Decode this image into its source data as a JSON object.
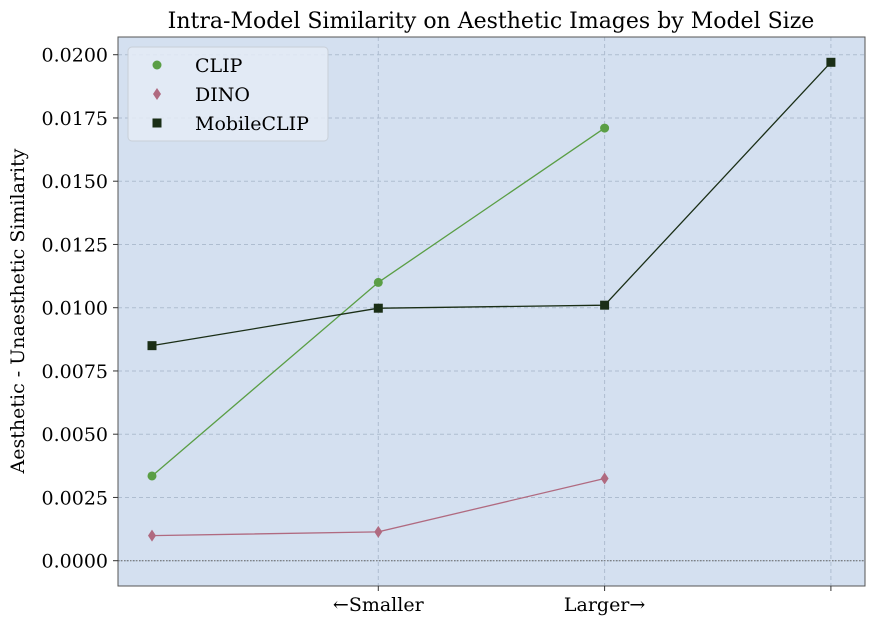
{
  "chart_data": {
    "type": "line",
    "title": "Intra-Model Similarity on Aesthetic Images by Model Size",
    "ylabel": "Aesthetic - Unaesthetic Similarity",
    "xlabel": "",
    "x_tick_labels": [
      "",
      "←Smaller",
      "Larger→",
      ""
    ],
    "ylim": [
      -0.001,
      0.0207
    ],
    "y_ticks": [
      0.0,
      0.0025,
      0.005,
      0.0075,
      0.01,
      0.0125,
      0.015,
      0.0175,
      0.02
    ],
    "y_tick_labels": [
      "0.0000",
      "0.0025",
      "0.0050",
      "0.0075",
      "0.0100",
      "0.0125",
      "0.0150",
      "0.0175",
      "0.0200"
    ],
    "grid": true,
    "zero_line": true,
    "legend_position": "top-left",
    "background_color": "#d4e0f0",
    "series": [
      {
        "name": "CLIP",
        "marker": "circle",
        "color": "#5a9e45",
        "x": [
          0,
          1,
          2
        ],
        "values": [
          0.00335,
          0.011,
          0.0171
        ]
      },
      {
        "name": "DINO",
        "marker": "diamond",
        "color": "#b06a80",
        "x": [
          0,
          1,
          2
        ],
        "values": [
          0.00099,
          0.00114,
          0.00325
        ]
      },
      {
        "name": "MobileCLIP",
        "marker": "square",
        "color": "#1a2e16",
        "x": [
          0,
          1,
          2,
          3
        ],
        "values": [
          0.0085,
          0.00998,
          0.0101,
          0.0197
        ]
      }
    ]
  }
}
